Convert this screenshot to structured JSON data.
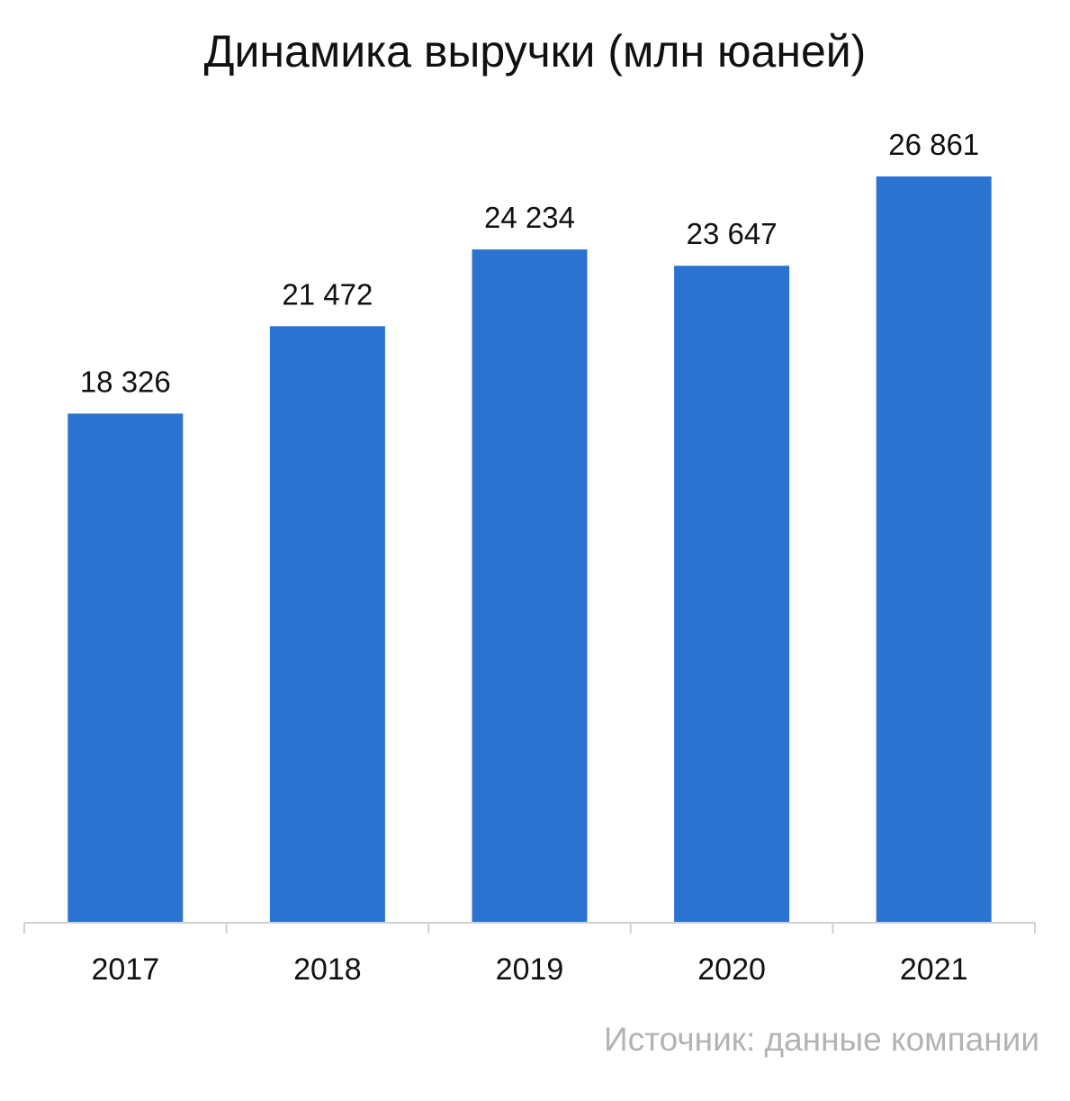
{
  "chart_data": {
    "type": "bar",
    "title": "Динамика выручки (млн юаней)",
    "categories": [
      "2017",
      "2018",
      "2019",
      "2020",
      "2021"
    ],
    "values": [
      18326,
      21472,
      24234,
      23647,
      26861
    ],
    "value_labels": [
      "18 326",
      "21 472",
      "24 234",
      "23 647",
      "26 861"
    ],
    "xlabel": "",
    "ylabel": "",
    "ylim": [
      0,
      26861
    ],
    "grid": false,
    "legend": "none",
    "bar_color": "#2B73D1",
    "axis_color": "#d0d0d0"
  },
  "footer": {
    "source": "Источник: данные компании"
  }
}
